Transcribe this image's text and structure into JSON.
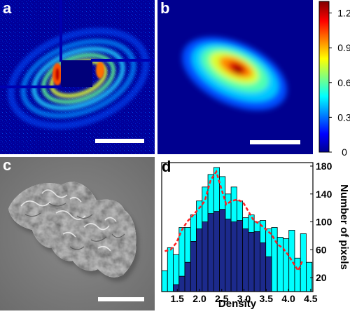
{
  "panels": {
    "a": {
      "label": "a"
    },
    "b": {
      "label": "b"
    },
    "c": {
      "label": "c"
    },
    "d": {
      "label": "d"
    }
  },
  "colorbar": {
    "ticks": [
      "1.2",
      "0.9",
      "0.6",
      "0.3",
      "0"
    ],
    "tick_values": [
      1.2,
      0.9,
      0.6,
      0.3,
      0
    ],
    "range": [
      0,
      1.3
    ],
    "colormap": "jet"
  },
  "chart_data": {
    "type": "bar",
    "xlabel": "Density",
    "ylabel": "Number of pixels",
    "x_ticks": [
      "1.5",
      "2.0",
      "2.5",
      "3.0",
      "3.5",
      "4.0",
      "4.5"
    ],
    "x_tick_values": [
      1.5,
      2.0,
      2.5,
      3.0,
      3.5,
      4.0,
      4.5
    ],
    "y_ticks": [
      "20",
      "60",
      "100",
      "140",
      "180"
    ],
    "y_tick_values": [
      20,
      60,
      100,
      140,
      180
    ],
    "xlim": [
      1.15,
      4.55
    ],
    "ylim": [
      0,
      185
    ],
    "y_axis_side": "right",
    "bin_width": 0.13,
    "bin_starts": [
      1.15,
      1.28,
      1.41,
      1.54,
      1.67,
      1.8,
      1.93,
      2.06,
      2.19,
      2.32,
      2.45,
      2.58,
      2.71,
      2.84,
      2.97,
      3.1,
      3.23,
      3.36,
      3.49,
      3.62,
      3.75,
      3.88,
      4.01,
      4.14,
      4.27,
      4.4
    ],
    "series": [
      {
        "color": "#00ffff",
        "values": [
          30,
          63,
          53,
          92,
          92,
          110,
          130,
          150,
          168,
          178,
          165,
          140,
          150,
          130,
          106,
          110,
          100,
          102,
          90,
          92,
          78,
          76,
          88,
          48,
          83,
          42
        ]
      },
      {
        "color": "#1c2a8c",
        "values": [
          0,
          0,
          10,
          22,
          42,
          72,
          90,
          100,
          112,
          115,
          118,
          104,
          100,
          102,
          90,
          85,
          86,
          70,
          50,
          0,
          0,
          0,
          0,
          0,
          0,
          0
        ]
      }
    ],
    "trend_line": {
      "color": "#ff2020",
      "style": "dashed",
      "x": [
        1.22,
        1.35,
        1.48,
        1.6,
        1.72,
        1.86,
        2.0,
        2.12,
        2.25,
        2.38,
        2.48,
        2.6,
        2.72,
        2.85,
        2.98,
        3.1,
        3.22,
        3.35,
        3.48,
        3.62,
        3.75,
        3.88,
        4.0,
        4.1,
        4.22,
        4.32
      ],
      "y": [
        58,
        60,
        70,
        88,
        100,
        110,
        120,
        130,
        160,
        172,
        150,
        125,
        130,
        132,
        128,
        115,
        102,
        97,
        90,
        82,
        68,
        62,
        52,
        42,
        30,
        45
      ]
    }
  }
}
